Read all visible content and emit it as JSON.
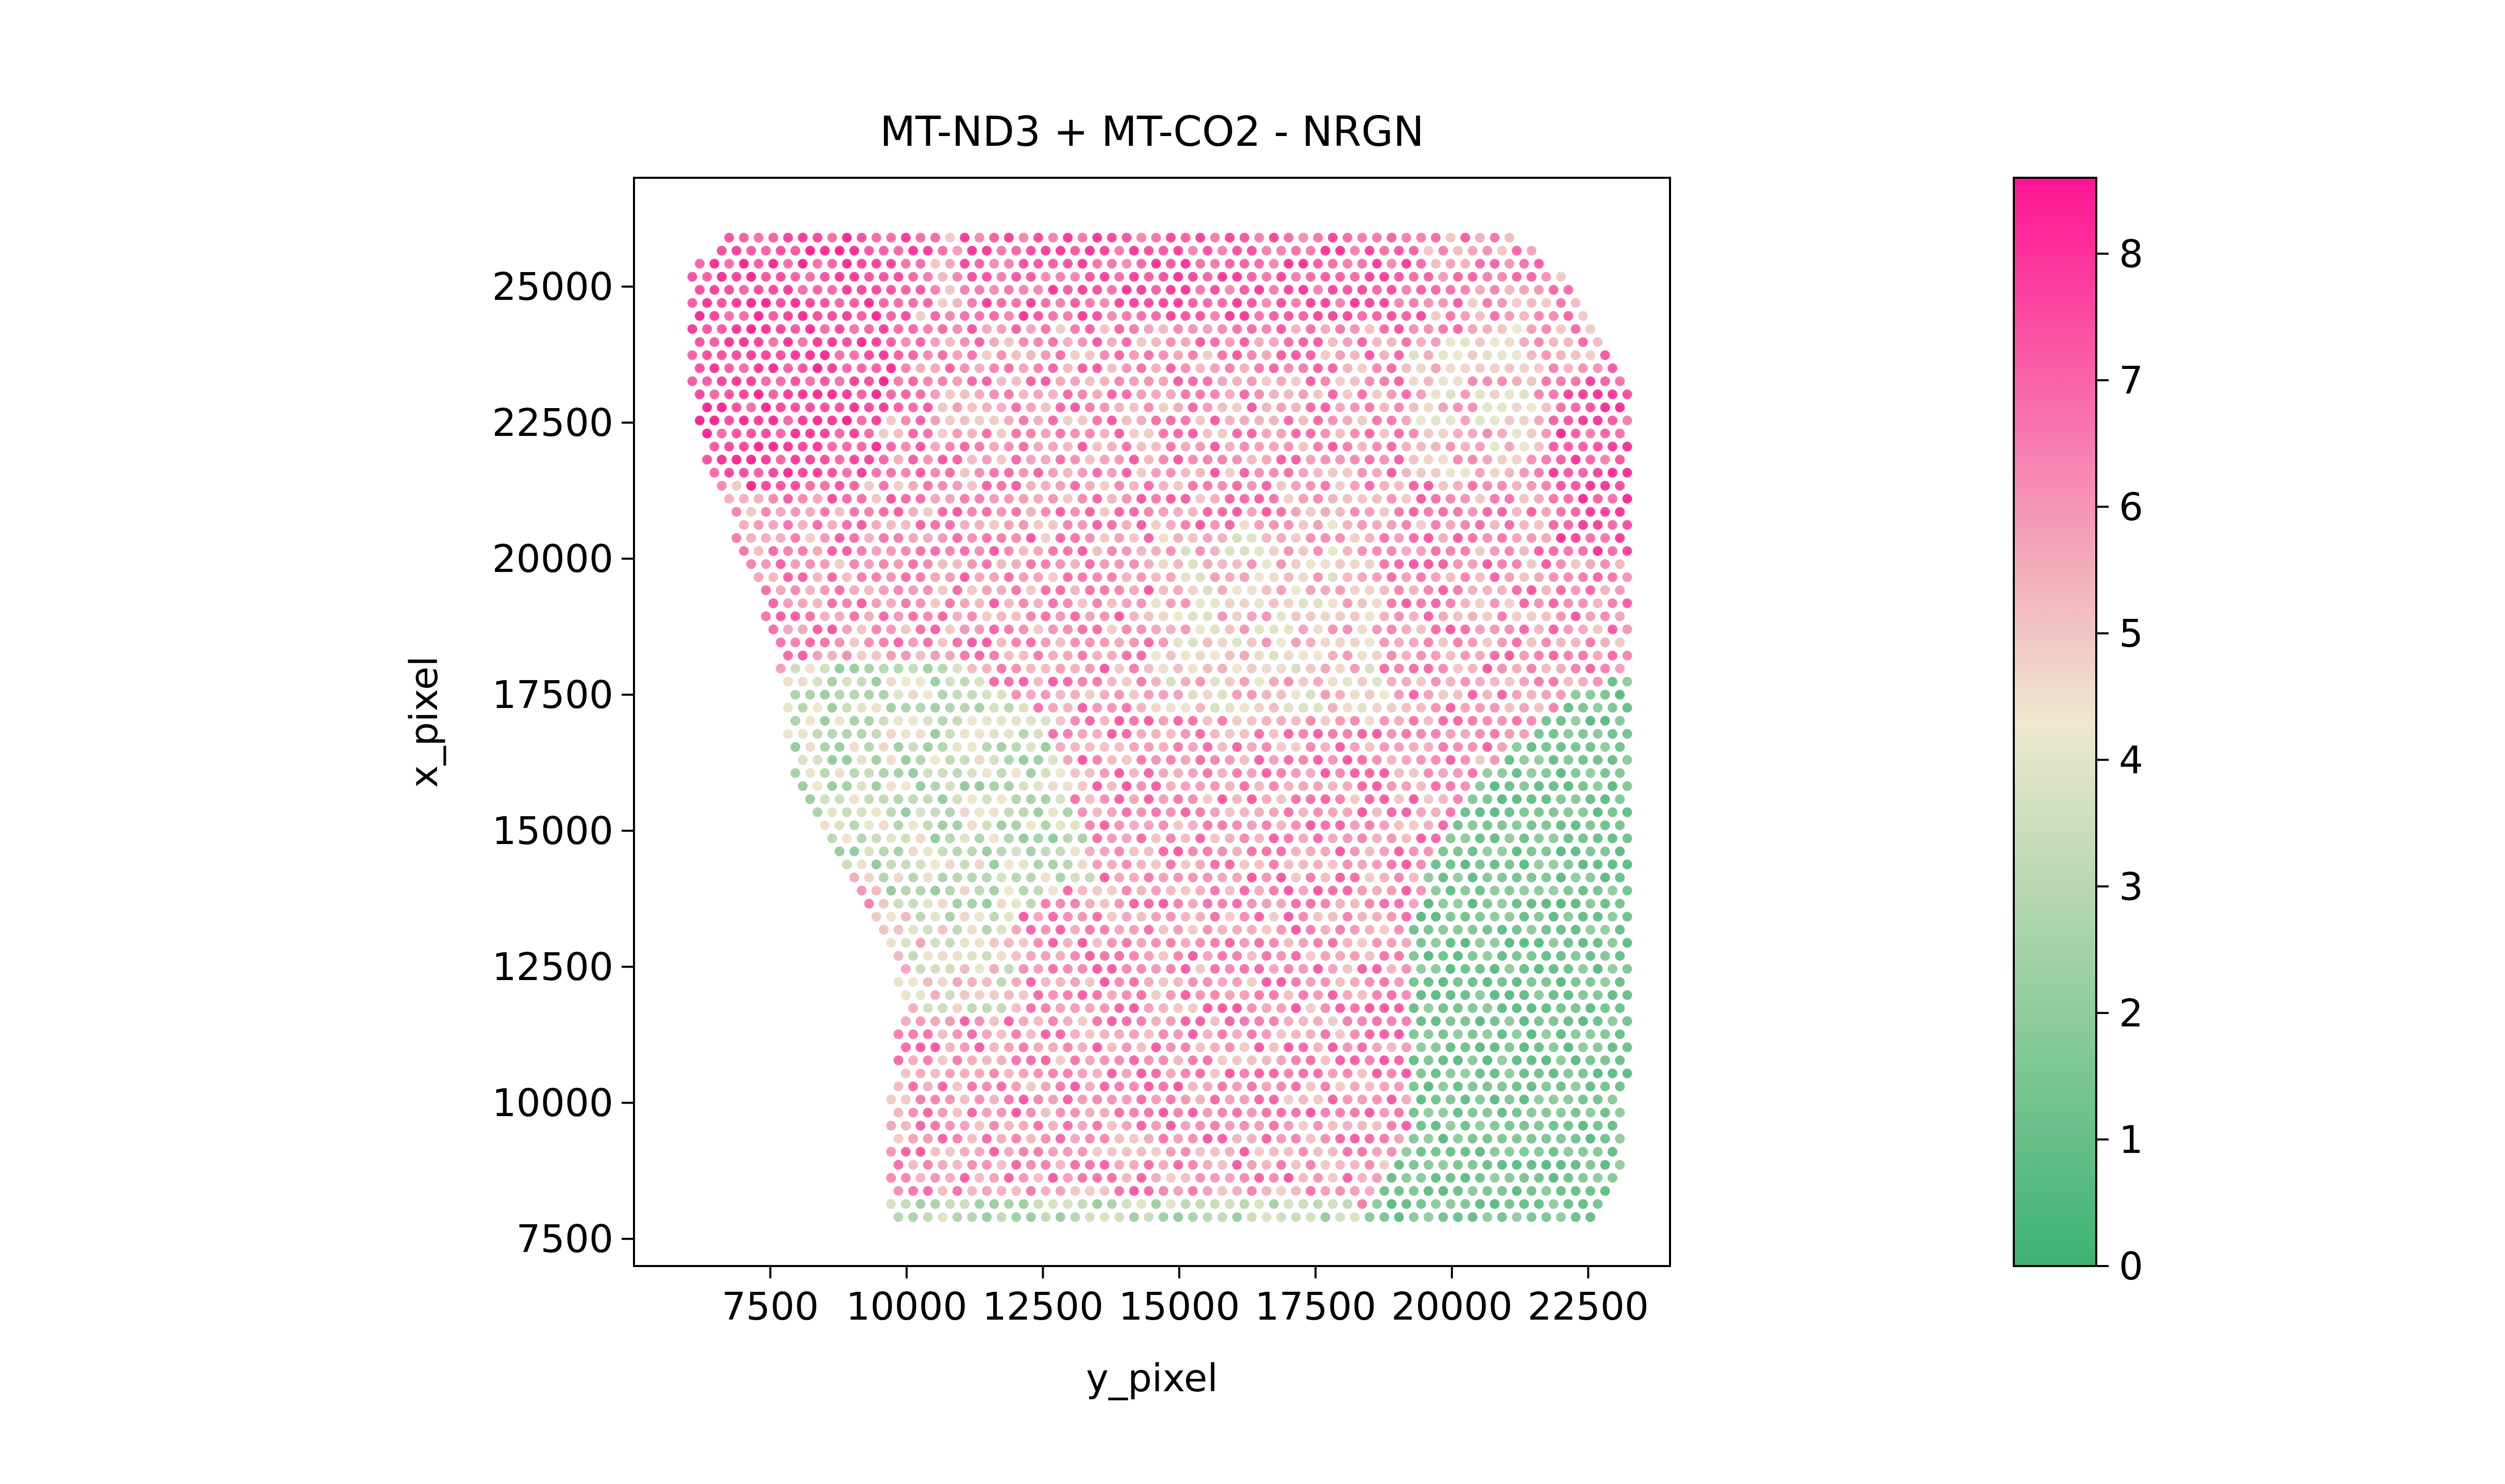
{
  "chart_data": {
    "type": "scatter",
    "title": "MT-ND3 + MT-CO2 - NRGN",
    "xlabel": "y_pixel",
    "ylabel": "x_pixel",
    "xlim": [
      5000,
      24000
    ],
    "ylim": [
      27000,
      7000
    ],
    "y_inverted": true,
    "xticks": [
      7500,
      10000,
      12500,
      15000,
      17500,
      20000,
      22500
    ],
    "xtick_labels": [
      "7500",
      "10000",
      "12500",
      "15000",
      "17500",
      "20000",
      "22500"
    ],
    "yticks": [
      7500,
      10000,
      12500,
      15000,
      17500,
      20000,
      22500,
      25000
    ],
    "ytick_labels": [
      "7500",
      "10000",
      "12500",
      "15000",
      "17500",
      "20000",
      "22500",
      "25000"
    ],
    "grid": false,
    "colorbar": {
      "vmin": 0,
      "vmax": 8.6,
      "ticks": [
        0,
        1,
        2,
        3,
        4,
        5,
        6,
        7,
        8
      ],
      "tick_labels": [
        "0",
        "1",
        "2",
        "3",
        "4",
        "5",
        "6",
        "7",
        "8"
      ],
      "colormap": [
        "#3cb371",
        "#eee8cd",
        "#ff1493"
      ]
    },
    "spot_grid": {
      "row_spacing": 240,
      "col_spacing": 270,
      "top": 7900,
      "bottom": 26000
    },
    "outline": [
      [
        9700,
        7850
      ],
      [
        22700,
        7850
      ],
      [
        23200,
        9000
      ],
      [
        23300,
        17900
      ],
      [
        23300,
        22800
      ],
      [
        22800,
        24200
      ],
      [
        22000,
        25300
      ],
      [
        21000,
        26000
      ],
      [
        9000,
        26000
      ],
      [
        6700,
        26000
      ],
      [
        6000,
        25200
      ],
      [
        6000,
        23500
      ],
      [
        6400,
        21500
      ],
      [
        7400,
        19000
      ],
      [
        7700,
        17500
      ],
      [
        8000,
        15700
      ],
      [
        8800,
        14500
      ],
      [
        9500,
        13200
      ],
      [
        9900,
        12000
      ],
      [
        9700,
        10000
      ]
    ],
    "regions": {
      "green_top_right": [
        [
          18300,
          7800
        ],
        [
          23300,
          7800
        ],
        [
          23300,
          17900
        ],
        [
          22200,
          17500
        ],
        [
          21000,
          16500
        ],
        [
          19900,
          15200
        ],
        [
          19200,
          13200
        ],
        [
          19200,
          9500
        ],
        [
          18300,
          7800
        ]
      ],
      "green_top_edge": [
        [
          9700,
          7800
        ],
        [
          18300,
          7800
        ],
        [
          18300,
          8200
        ],
        [
          9700,
          8200
        ]
      ],
      "light_left": [
        [
          7800,
          15000
        ],
        [
          11200,
          13000
        ],
        [
          13500,
          14200
        ],
        [
          12500,
          17200
        ],
        [
          10500,
          18200
        ],
        [
          7800,
          18000
        ]
      ],
      "light_left_upper": [
        [
          9700,
          11600
        ],
        [
          12000,
          11600
        ],
        [
          12000,
          14200
        ],
        [
          9700,
          14200
        ]
      ],
      "light_mid": [
        [
          14500,
          17200
        ],
        [
          18800,
          17000
        ],
        [
          18500,
          20800
        ],
        [
          14500,
          20500
        ]
      ],
      "light_right_low": [
        [
          19200,
          21500
        ],
        [
          21500,
          21500
        ],
        [
          21500,
          24500
        ],
        [
          19200,
          24000
        ]
      ],
      "hot_bottom_left": [
        [
          6000,
          21500
        ],
        [
          9200,
          21000
        ],
        [
          10500,
          26000
        ],
        [
          6000,
          26000
        ]
      ],
      "hot_bottom": [
        [
          11000,
          24300
        ],
        [
          19500,
          24300
        ],
        [
          19500,
          26000
        ],
        [
          11000,
          26000
        ]
      ],
      "hot_right": [
        [
          21800,
          20000
        ],
        [
          23300,
          20000
        ],
        [
          23300,
          23500
        ],
        [
          21800,
          23500
        ]
      ]
    }
  }
}
